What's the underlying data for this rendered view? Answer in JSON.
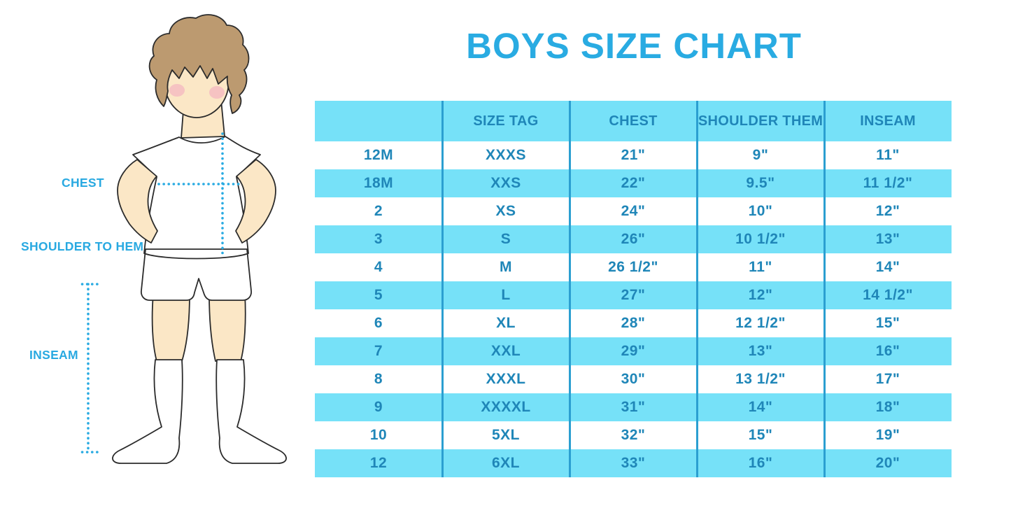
{
  "title": "BOYS SIZE CHART",
  "colors": {
    "title_blue": "#29ABE2",
    "label_blue": "#29A9E1",
    "dotted_line_blue": "#29ABE2",
    "band_blue": "#76E1F8",
    "grid_line_blue": "#2B9FD1",
    "cell_text_blue": "#1F86B8",
    "skin": "#FBE7C6",
    "hair": "#BC9A70",
    "blush": "#F3B4C1",
    "outline": "#2B2B2B"
  },
  "figure": {
    "labels": [
      {
        "id": "chest",
        "text": "CHEST"
      },
      {
        "id": "shoulder-to-hem",
        "text": "SHOULDER TO HEM"
      },
      {
        "id": "inseam",
        "text": "INSEAM"
      }
    ]
  },
  "chart_data": {
    "type": "table",
    "title": "BOYS SIZE CHART",
    "columns": [
      "",
      "SIZE TAG",
      "CHEST",
      "SHOULDER THEM",
      "INSEAM"
    ],
    "rows": [
      [
        "12M",
        "XXXS",
        "21\"",
        "9\"",
        "11\""
      ],
      [
        "18M",
        "XXS",
        "22\"",
        "9.5\"",
        "11 1/2\""
      ],
      [
        "2",
        "XS",
        "24\"",
        "10\"",
        "12\""
      ],
      [
        "3",
        "S",
        "26\"",
        "10 1/2\"",
        "13\""
      ],
      [
        "4",
        "M",
        "26 1/2\"",
        "11\"",
        "14\""
      ],
      [
        "5",
        "L",
        "27\"",
        "12\"",
        "14 1/2\""
      ],
      [
        "6",
        "XL",
        "28\"",
        "12 1/2\"",
        "15\""
      ],
      [
        "7",
        "XXL",
        "29\"",
        "13\"",
        "16\""
      ],
      [
        "8",
        "XXXL",
        "30\"",
        "13 1/2\"",
        "17\""
      ],
      [
        "9",
        "XXXXL",
        "31\"",
        "14\"",
        "18\""
      ],
      [
        "10",
        "5XL",
        "32\"",
        "15\"",
        "19\""
      ],
      [
        "12",
        "6XL",
        "33\"",
        "16\"",
        "20\""
      ]
    ],
    "style_notes": "header row and even data rows have light blue band; others white; 4 vertical divider lines"
  }
}
